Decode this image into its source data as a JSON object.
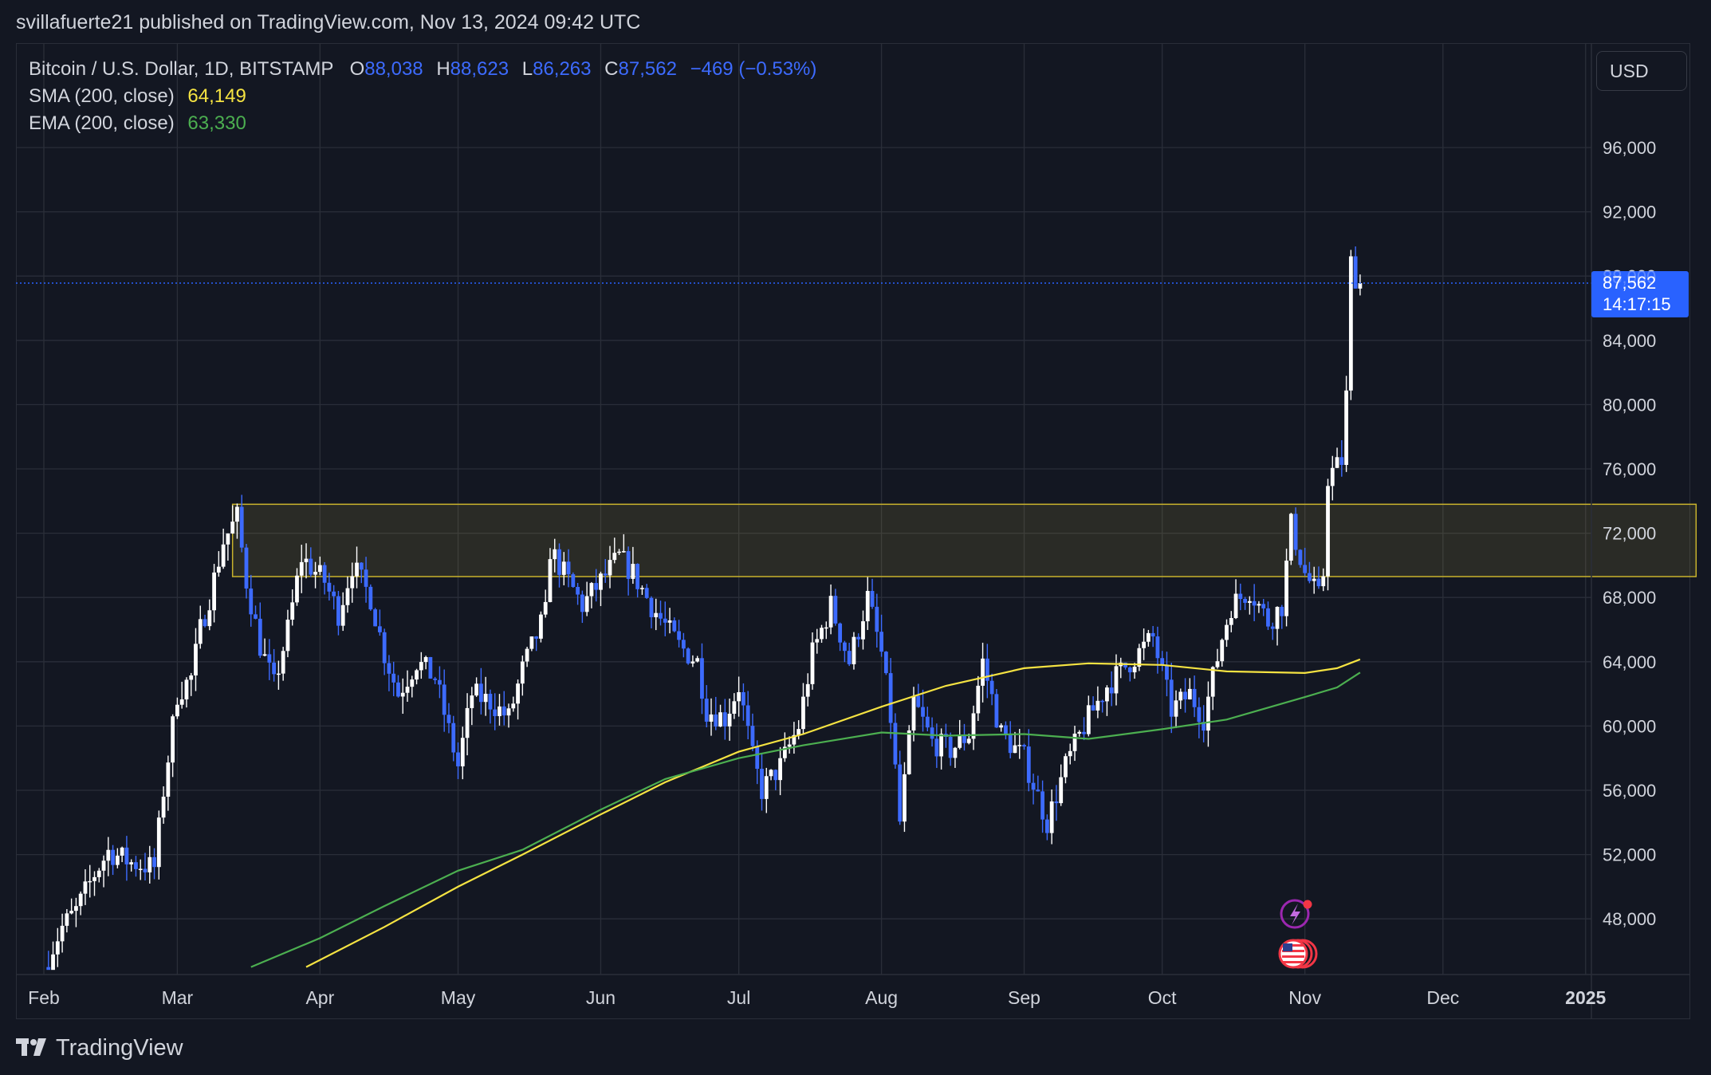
{
  "header": {
    "published_by": "svillafuerte21 published on TradingView.com, Nov 13, 2024 09:42 UTC"
  },
  "legend": {
    "symbol": "Bitcoin / U.S. Dollar, 1D, BITSTAMP",
    "o_label": "O",
    "o_value": "88,038",
    "h_label": "H",
    "h_value": "88,623",
    "l_label": "L",
    "l_value": "86,263",
    "c_label": "C",
    "c_value": "87,562",
    "change": "−469 (−0.53%)",
    "sma_label": "SMA (200, close)",
    "sma_value": "64,149",
    "ema_label": "EMA (200, close)",
    "ema_value": "63,330"
  },
  "currency_button": "USD",
  "price_tag": {
    "price": "87,562",
    "countdown": "14:17:15",
    "hidden_label": "88,000"
  },
  "brand": {
    "name": "TradingView"
  },
  "colors": {
    "background": "#131722",
    "grid": "#2a2e39",
    "up_candle": "#ffffff",
    "down_candle": "#3d6bff",
    "sma": "#f5e342",
    "ema": "#4caf50",
    "zone_border": "#c9b32c",
    "price_tag": "#2962ff"
  },
  "icons": {
    "lightning_badge": "lightning-icon",
    "us_flag_badge": "us-flag-icon"
  },
  "chart_data": {
    "type": "candlestick",
    "title": "Bitcoin / U.S. Dollar, 1D, BITSTAMP",
    "y_axis_labels": [
      "96,000",
      "92,000",
      "88,000",
      "84,000",
      "80,000",
      "76,000",
      "72,000",
      "68,000",
      "64,000",
      "60,000",
      "56,000",
      "52,000",
      "48,000"
    ],
    "x_axis_labels": [
      "Feb",
      "Mar",
      "Apr",
      "May",
      "Jun",
      "Jul",
      "Aug",
      "Sep",
      "Oct",
      "Nov",
      "Dec",
      "2025"
    ],
    "ylim": [
      45000,
      99000
    ],
    "xlim": [
      "2024-01-25",
      "2025-01-28"
    ],
    "grid": true,
    "last_price": 87562,
    "resistance_zone": {
      "from": "2024-03-13",
      "to": "2025-01-25",
      "low": 69300,
      "high": 73800
    },
    "sma_200": [
      {
        "date": "2024-03-29",
        "value": 45000
      },
      {
        "date": "2024-04-15",
        "value": 47500
      },
      {
        "date": "2024-05-01",
        "value": 50000
      },
      {
        "date": "2024-05-15",
        "value": 52000
      },
      {
        "date": "2024-06-01",
        "value": 54500
      },
      {
        "date": "2024-06-15",
        "value": 56500
      },
      {
        "date": "2024-07-01",
        "value": 58400
      },
      {
        "date": "2024-07-15",
        "value": 59500
      },
      {
        "date": "2024-08-01",
        "value": 61200
      },
      {
        "date": "2024-08-15",
        "value": 62500
      },
      {
        "date": "2024-09-01",
        "value": 63600
      },
      {
        "date": "2024-09-15",
        "value": 63900
      },
      {
        "date": "2024-10-01",
        "value": 63800
      },
      {
        "date": "2024-10-15",
        "value": 63400
      },
      {
        "date": "2024-11-01",
        "value": 63300
      },
      {
        "date": "2024-11-08",
        "value": 63600
      },
      {
        "date": "2024-11-13",
        "value": 64149
      }
    ],
    "ema_200": [
      {
        "date": "2024-03-17",
        "value": 45000
      },
      {
        "date": "2024-04-01",
        "value": 46800
      },
      {
        "date": "2024-04-15",
        "value": 48800
      },
      {
        "date": "2024-05-01",
        "value": 51000
      },
      {
        "date": "2024-05-15",
        "value": 52300
      },
      {
        "date": "2024-06-01",
        "value": 54800
      },
      {
        "date": "2024-06-15",
        "value": 56700
      },
      {
        "date": "2024-07-01",
        "value": 58000
      },
      {
        "date": "2024-07-15",
        "value": 58800
      },
      {
        "date": "2024-08-01",
        "value": 59600
      },
      {
        "date": "2024-08-15",
        "value": 59400
      },
      {
        "date": "2024-09-01",
        "value": 59500
      },
      {
        "date": "2024-09-15",
        "value": 59200
      },
      {
        "date": "2024-10-01",
        "value": 59800
      },
      {
        "date": "2024-10-15",
        "value": 60400
      },
      {
        "date": "2024-11-01",
        "value": 61800
      },
      {
        "date": "2024-11-08",
        "value": 62400
      },
      {
        "date": "2024-11-13",
        "value": 63330
      }
    ],
    "price_path": [
      {
        "date": "2024-02-01",
        "value": 45000
      },
      {
        "date": "2024-02-05",
        "value": 47500
      },
      {
        "date": "2024-02-08",
        "value": 48500
      },
      {
        "date": "2024-02-12",
        "value": 50800
      },
      {
        "date": "2024-02-15",
        "value": 52200
      },
      {
        "date": "2024-02-20",
        "value": 51500
      },
      {
        "date": "2024-02-25",
        "value": 51200
      },
      {
        "date": "2024-02-27",
        "value": 56000
      },
      {
        "date": "2024-02-28",
        "value": 58000
      },
      {
        "date": "2024-03-01",
        "value": 62000
      },
      {
        "date": "2024-03-04",
        "value": 63000
      },
      {
        "date": "2024-03-06",
        "value": 66000
      },
      {
        "date": "2024-03-08",
        "value": 68000
      },
      {
        "date": "2024-03-11",
        "value": 71500
      },
      {
        "date": "2024-03-14",
        "value": 73000
      },
      {
        "date": "2024-03-16",
        "value": 69000
      },
      {
        "date": "2024-03-19",
        "value": 65000
      },
      {
        "date": "2024-03-22",
        "value": 62500
      },
      {
        "date": "2024-03-25",
        "value": 66000
      },
      {
        "date": "2024-03-28",
        "value": 70500
      },
      {
        "date": "2024-04-02",
        "value": 69000
      },
      {
        "date": "2024-04-05",
        "value": 67000
      },
      {
        "date": "2024-04-08",
        "value": 70000
      },
      {
        "date": "2024-04-12",
        "value": 68000
      },
      {
        "date": "2024-04-15",
        "value": 64500
      },
      {
        "date": "2024-04-18",
        "value": 62000
      },
      {
        "date": "2024-04-22",
        "value": 64000
      },
      {
        "date": "2024-04-26",
        "value": 63000
      },
      {
        "date": "2024-05-01",
        "value": 57500
      },
      {
        "date": "2024-05-04",
        "value": 62000
      },
      {
        "date": "2024-05-08",
        "value": 61500
      },
      {
        "date": "2024-05-12",
        "value": 60500
      },
      {
        "date": "2024-05-15",
        "value": 63500
      },
      {
        "date": "2024-05-20",
        "value": 67000
      },
      {
        "date": "2024-05-21",
        "value": 71000
      },
      {
        "date": "2024-05-25",
        "value": 69000
      },
      {
        "date": "2024-05-28",
        "value": 67500
      },
      {
        "date": "2024-06-05",
        "value": 70500
      },
      {
        "date": "2024-06-08",
        "value": 69500
      },
      {
        "date": "2024-06-12",
        "value": 67500
      },
      {
        "date": "2024-06-18",
        "value": 65000
      },
      {
        "date": "2024-06-22",
        "value": 64000
      },
      {
        "date": "2024-06-24",
        "value": 61000
      },
      {
        "date": "2024-06-28",
        "value": 60500
      },
      {
        "date": "2024-07-01",
        "value": 62500
      },
      {
        "date": "2024-07-04",
        "value": 58000
      },
      {
        "date": "2024-07-06",
        "value": 56000
      },
      {
        "date": "2024-07-10",
        "value": 57500
      },
      {
        "date": "2024-07-14",
        "value": 60000
      },
      {
        "date": "2024-07-17",
        "value": 64500
      },
      {
        "date": "2024-07-21",
        "value": 67500
      },
      {
        "date": "2024-07-25",
        "value": 64000
      },
      {
        "date": "2024-07-29",
        "value": 68000
      },
      {
        "date": "2024-08-01",
        "value": 64500
      },
      {
        "date": "2024-08-03",
        "value": 60500
      },
      {
        "date": "2024-08-05",
        "value": 54000
      },
      {
        "date": "2024-08-08",
        "value": 61500
      },
      {
        "date": "2024-08-12",
        "value": 59000
      },
      {
        "date": "2024-08-16",
        "value": 58500
      },
      {
        "date": "2024-08-20",
        "value": 59500
      },
      {
        "date": "2024-08-23",
        "value": 64000
      },
      {
        "date": "2024-08-27",
        "value": 59500
      },
      {
        "date": "2024-09-01",
        "value": 58000
      },
      {
        "date": "2024-09-06",
        "value": 54000
      },
      {
        "date": "2024-09-10",
        "value": 57500
      },
      {
        "date": "2024-09-14",
        "value": 60000
      },
      {
        "date": "2024-09-19",
        "value": 62500
      },
      {
        "date": "2024-09-24",
        "value": 64000
      },
      {
        "date": "2024-09-29",
        "value": 65500
      },
      {
        "date": "2024-10-03",
        "value": 61000
      },
      {
        "date": "2024-10-07",
        "value": 62000
      },
      {
        "date": "2024-10-10",
        "value": 60500
      },
      {
        "date": "2024-10-14",
        "value": 65500
      },
      {
        "date": "2024-10-16",
        "value": 67500
      },
      {
        "date": "2024-10-20",
        "value": 68500
      },
      {
        "date": "2024-10-24",
        "value": 66500
      },
      {
        "date": "2024-10-27",
        "value": 67500
      },
      {
        "date": "2024-10-29",
        "value": 72500
      },
      {
        "date": "2024-11-01",
        "value": 69500
      },
      {
        "date": "2024-11-04",
        "value": 68000
      },
      {
        "date": "2024-11-05",
        "value": 69500
      },
      {
        "date": "2024-11-06",
        "value": 75500
      },
      {
        "date": "2024-11-09",
        "value": 76500
      },
      {
        "date": "2024-11-10",
        "value": 80500
      },
      {
        "date": "2024-11-11",
        "value": 88800
      },
      {
        "date": "2024-11-12",
        "value": 88000
      },
      {
        "date": "2024-11-13",
        "value": 87562
      }
    ]
  }
}
